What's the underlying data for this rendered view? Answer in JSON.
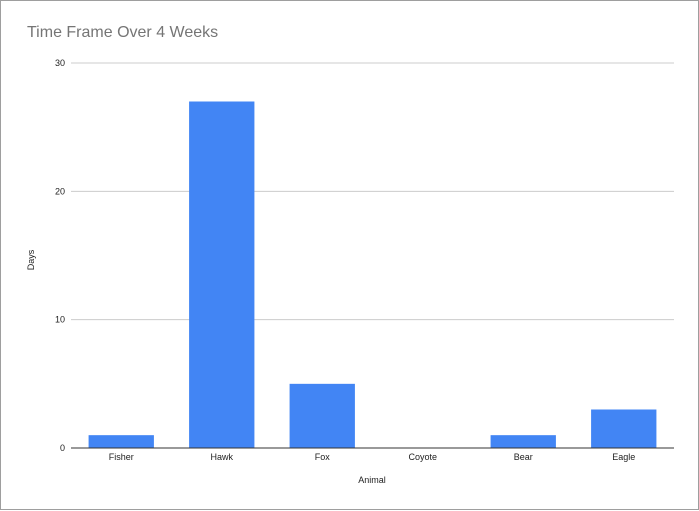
{
  "chart_data": {
    "type": "bar",
    "title": "Time Frame Over 4 Weeks",
    "xlabel": "Animal",
    "ylabel": "Days",
    "categories": [
      "Fisher",
      "Hawk",
      "Fox",
      "Coyote",
      "Bear",
      "Eagle"
    ],
    "values": [
      1,
      27,
      5,
      0,
      1,
      3
    ],
    "ylim": [
      0,
      30
    ],
    "yticks": [
      0,
      10,
      20,
      30
    ],
    "grid": true,
    "legend": "none",
    "bar_color": "#4285f4",
    "grid_color": "#cccccc"
  }
}
